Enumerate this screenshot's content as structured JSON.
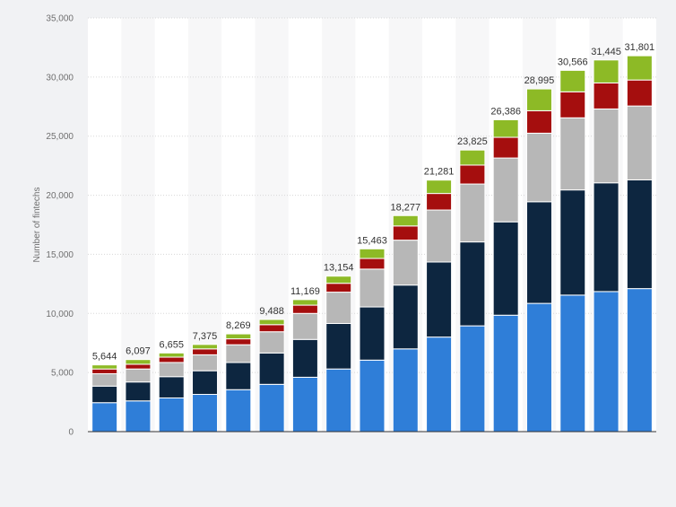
{
  "chart_data": {
    "type": "bar",
    "stacked": true,
    "title": "",
    "xlabel": "",
    "ylabel": "Number of fintechs",
    "ylim": [
      0,
      35000
    ],
    "yticks": [
      0,
      5000,
      10000,
      15000,
      20000,
      25000,
      30000,
      35000
    ],
    "ytick_labels": [
      "0",
      "5,000",
      "10,000",
      "15,000",
      "20,000",
      "25,000",
      "30,000",
      "35,000"
    ],
    "categories": [
      "",
      "",
      "",
      "",
      "",
      "",
      "",
      "",
      "",
      "",
      "",
      "",
      "",
      "",
      "",
      "",
      ""
    ],
    "series": [
      {
        "name": "",
        "color": "#2f7ed8",
        "values": [
          2450,
          2600,
          2850,
          3150,
          3550,
          4000,
          4600,
          5300,
          6050,
          7000,
          8000,
          8950,
          9850,
          10850,
          11550,
          11850,
          12100
        ]
      },
      {
        "name": "",
        "color": "#0d2640",
        "values": [
          1400,
          1600,
          1800,
          2000,
          2300,
          2650,
          3200,
          3850,
          4500,
          5400,
          6350,
          7100,
          7900,
          8600,
          8900,
          9200,
          9200
        ]
      },
      {
        "name": "",
        "color": "#b7b7b7",
        "values": [
          1050,
          1100,
          1200,
          1350,
          1500,
          1800,
          2200,
          2650,
          3200,
          3800,
          4400,
          4900,
          5400,
          5800,
          6100,
          6250,
          6250
        ]
      },
      {
        "name": "",
        "color": "#a50e0e",
        "values": [
          400,
          400,
          450,
          500,
          500,
          600,
          700,
          750,
          900,
          1200,
          1400,
          1600,
          1750,
          1900,
          2200,
          2200,
          2200
        ]
      },
      {
        "name": "",
        "color": "#8dba26",
        "values": [
          344,
          397,
          355,
          375,
          419,
          438,
          469,
          604,
          813,
          877,
          1131,
          1275,
          1486,
          1845,
          1816,
          1945,
          2051
        ]
      }
    ],
    "totals": [
      5644,
      6097,
      6655,
      7375,
      8269,
      9488,
      11169,
      13154,
      15463,
      18277,
      21281,
      23825,
      26386,
      28995,
      30566,
      31445,
      31801
    ],
    "total_labels": [
      "5,644",
      "6,097",
      "6,655",
      "7,375",
      "8,269",
      "9,488",
      "11,169",
      "13,154",
      "15,463",
      "18,277",
      "21,281",
      "23,825",
      "26,386",
      "28,995",
      "30,566",
      "31,445",
      "31,801"
    ],
    "grid": true
  }
}
